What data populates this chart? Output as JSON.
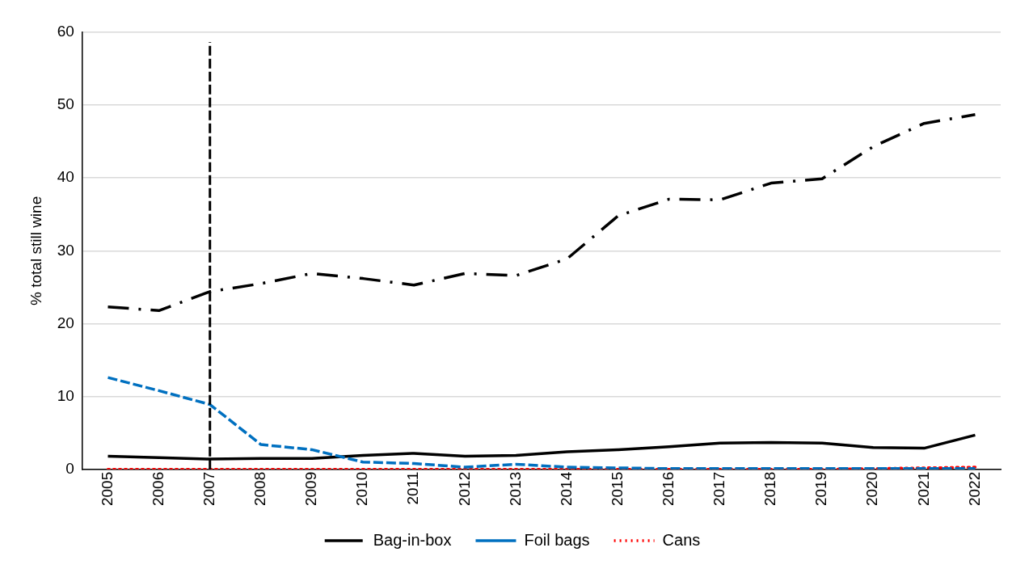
{
  "chart_data": {
    "type": "line",
    "ylabel": "% total still wine",
    "categories": [
      "2005",
      "2006",
      "2007",
      "2008",
      "2009",
      "2010",
      "2011",
      "2012",
      "2013",
      "2014",
      "2015",
      "2016",
      "2017",
      "2018",
      "2019",
      "2020",
      "2021",
      "2022"
    ],
    "series": [
      {
        "name": "Bag-in-box",
        "color": "#000000",
        "line_style": "dashdot",
        "values": [
          22.3,
          21.8,
          24.4,
          25.5,
          26.9,
          26.2,
          25.3,
          26.9,
          26.6,
          28.9,
          34.8,
          37.1,
          37.0,
          39.3,
          39.9,
          44.3,
          47.5,
          48.7
        ]
      },
      {
        "name": "Foil bags",
        "color": "#0070c0",
        "line_style": "dashed",
        "values": [
          12.6,
          10.8,
          8.9,
          3.4,
          2.7,
          1.0,
          0.8,
          0.3,
          0.7,
          0.3,
          0.2,
          0.1,
          0.1,
          0.1,
          0.1,
          0.1,
          0.1,
          0.1
        ]
      },
      {
        "color": "#000000",
        "line_style": "solid",
        "values": [
          1.8,
          1.6,
          1.4,
          1.5,
          1.5,
          1.9,
          2.2,
          1.8,
          1.9,
          2.4,
          2.7,
          3.1,
          3.6,
          3.7,
          3.6,
          3.0,
          2.9,
          4.7
        ]
      },
      {
        "name": "Cans",
        "color": "#ff0000",
        "line_style": "dotted",
        "values": [
          0,
          0,
          0,
          0,
          0,
          0,
          0,
          0,
          0,
          0,
          0,
          0,
          0,
          0,
          0,
          0.1,
          0.2,
          0.3
        ]
      }
    ],
    "ylim": [
      0,
      60
    ],
    "yticks": [
      0,
      10,
      20,
      30,
      40,
      50,
      60
    ],
    "grid": "y",
    "legend": "bottom",
    "marker": "none",
    "ref_lines": [
      {
        "axis": "x",
        "value": "2007",
        "color": "#000000",
        "line_style": "dashed"
      }
    ]
  }
}
